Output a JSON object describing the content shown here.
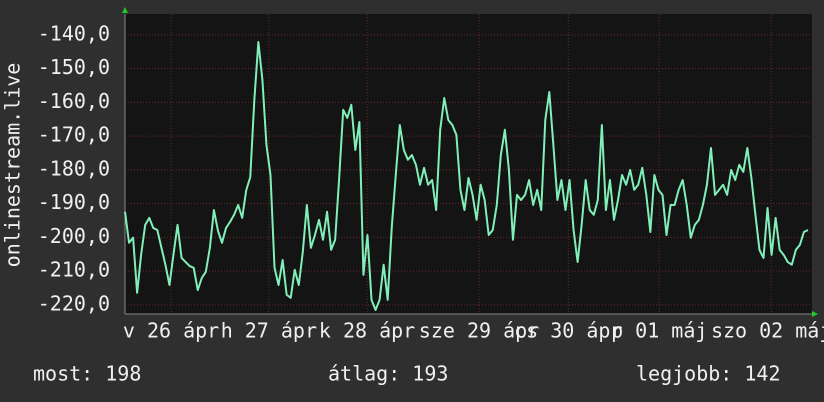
{
  "chart_data": {
    "type": "line",
    "y_label": "onlinestream.live",
    "color": "#80f0b8",
    "values": [
      -192.4,
      -201.6,
      -200.1,
      -216.4,
      -205,
      -196.3,
      -194.2,
      -197.2,
      -197.8,
      -203,
      -208.1,
      -214.1,
      -205,
      -196.3,
      -206.1,
      -207.3,
      -208.5,
      -209,
      -215.6,
      -212,
      -210.2,
      -203.1,
      -191.9,
      -198,
      -201.6,
      -197.2,
      -195.4,
      -193.3,
      -190.4,
      -194.2,
      -186,
      -182.1,
      -159.3,
      -142.1,
      -153.3,
      -172.6,
      -181.5,
      -209,
      -214.1,
      -206.7,
      -217,
      -217.9,
      -209.6,
      -214.1,
      -204.3,
      -190.4,
      -203.1,
      -199.3,
      -194.8,
      -200.7,
      -192.4,
      -203.7,
      -200.7,
      -182.4,
      -162.2,
      -164.6,
      -160.7,
      -174.1,
      -165.8,
      -211.1,
      -199.3,
      -218.5,
      -221.5,
      -218.5,
      -208.1,
      -218.5,
      -197.2,
      -181.5,
      -166.7,
      -174.1,
      -177,
      -175.6,
      -178.5,
      -184.4,
      -179.4,
      -184.4,
      -183,
      -191.9,
      -168.1,
      -158.7,
      -165.2,
      -166.7,
      -169.6,
      -185.9,
      -191.9,
      -182.4,
      -187.4,
      -194.8,
      -184.4,
      -188.9,
      -199.3,
      -197.8,
      -190.4,
      -175.6,
      -168.1,
      -180,
      -200.7,
      -187.4,
      -188.9,
      -187.4,
      -183,
      -190.4,
      -185.9,
      -191.9,
      -165.2,
      -156.9,
      -172.6,
      -188.9,
      -183,
      -191.9,
      -183,
      -197.8,
      -207.3,
      -196.3,
      -183,
      -191.9,
      -193.3,
      -188.9,
      -166.7,
      -191.9,
      -183,
      -194.8,
      -188.9,
      -181.5,
      -184.4,
      -180,
      -185.9,
      -184.4,
      -179.4,
      -187.4,
      -198.4,
      -181.5,
      -185.9,
      -187.4,
      -199.3,
      -190.4,
      -190.4,
      -185.9,
      -183,
      -190.4,
      -200.1,
      -196.3,
      -194.8,
      -190.4,
      -184.4,
      -173.5,
      -187.4,
      -185.9,
      -184.4,
      -187.4,
      -180,
      -183,
      -178.5,
      -180.6,
      -173.5,
      -182.4,
      -193.3,
      -203.7,
      -206.1,
      -191.3,
      -205.2,
      -194.2,
      -203.7,
      -205.2,
      -207.3,
      -208.1,
      -203.7,
      -202.2,
      -198.4,
      -197.8
    ],
    "xlim": [
      0,
      170
    ],
    "xticks": [
      {
        "value": 11.4,
        "label": "v 26 ápr"
      },
      {
        "value": 35.6,
        "label": "h 27 ápr"
      },
      {
        "value": 59.9,
        "label": "k 28 ápr"
      },
      {
        "value": 87.6,
        "label": "sze 29 ápr"
      },
      {
        "value": 109.7,
        "label": "cs 30 ápr"
      },
      {
        "value": 132.2,
        "label": "p 01 máj"
      },
      {
        "value": 159.9,
        "label": "szo 02 máj"
      }
    ],
    "ylim": [
      -222.7,
      -133.8
    ],
    "yticks": [
      {
        "value": -140,
        "label": "-140,0"
      },
      {
        "value": -150,
        "label": "-150,0"
      },
      {
        "value": -160,
        "label": "-160,0"
      },
      {
        "value": -170,
        "label": "-170,0"
      },
      {
        "value": -180,
        "label": "-180,0"
      },
      {
        "value": -190,
        "label": "-190,0"
      },
      {
        "value": -200,
        "label": "-200,0"
      },
      {
        "value": -210,
        "label": "-210,0"
      },
      {
        "value": -220,
        "label": "-220,0"
      }
    ],
    "grid": true
  },
  "summary": [
    "most: 198",
    "átlag: 193",
    "legjobb: 142"
  ]
}
